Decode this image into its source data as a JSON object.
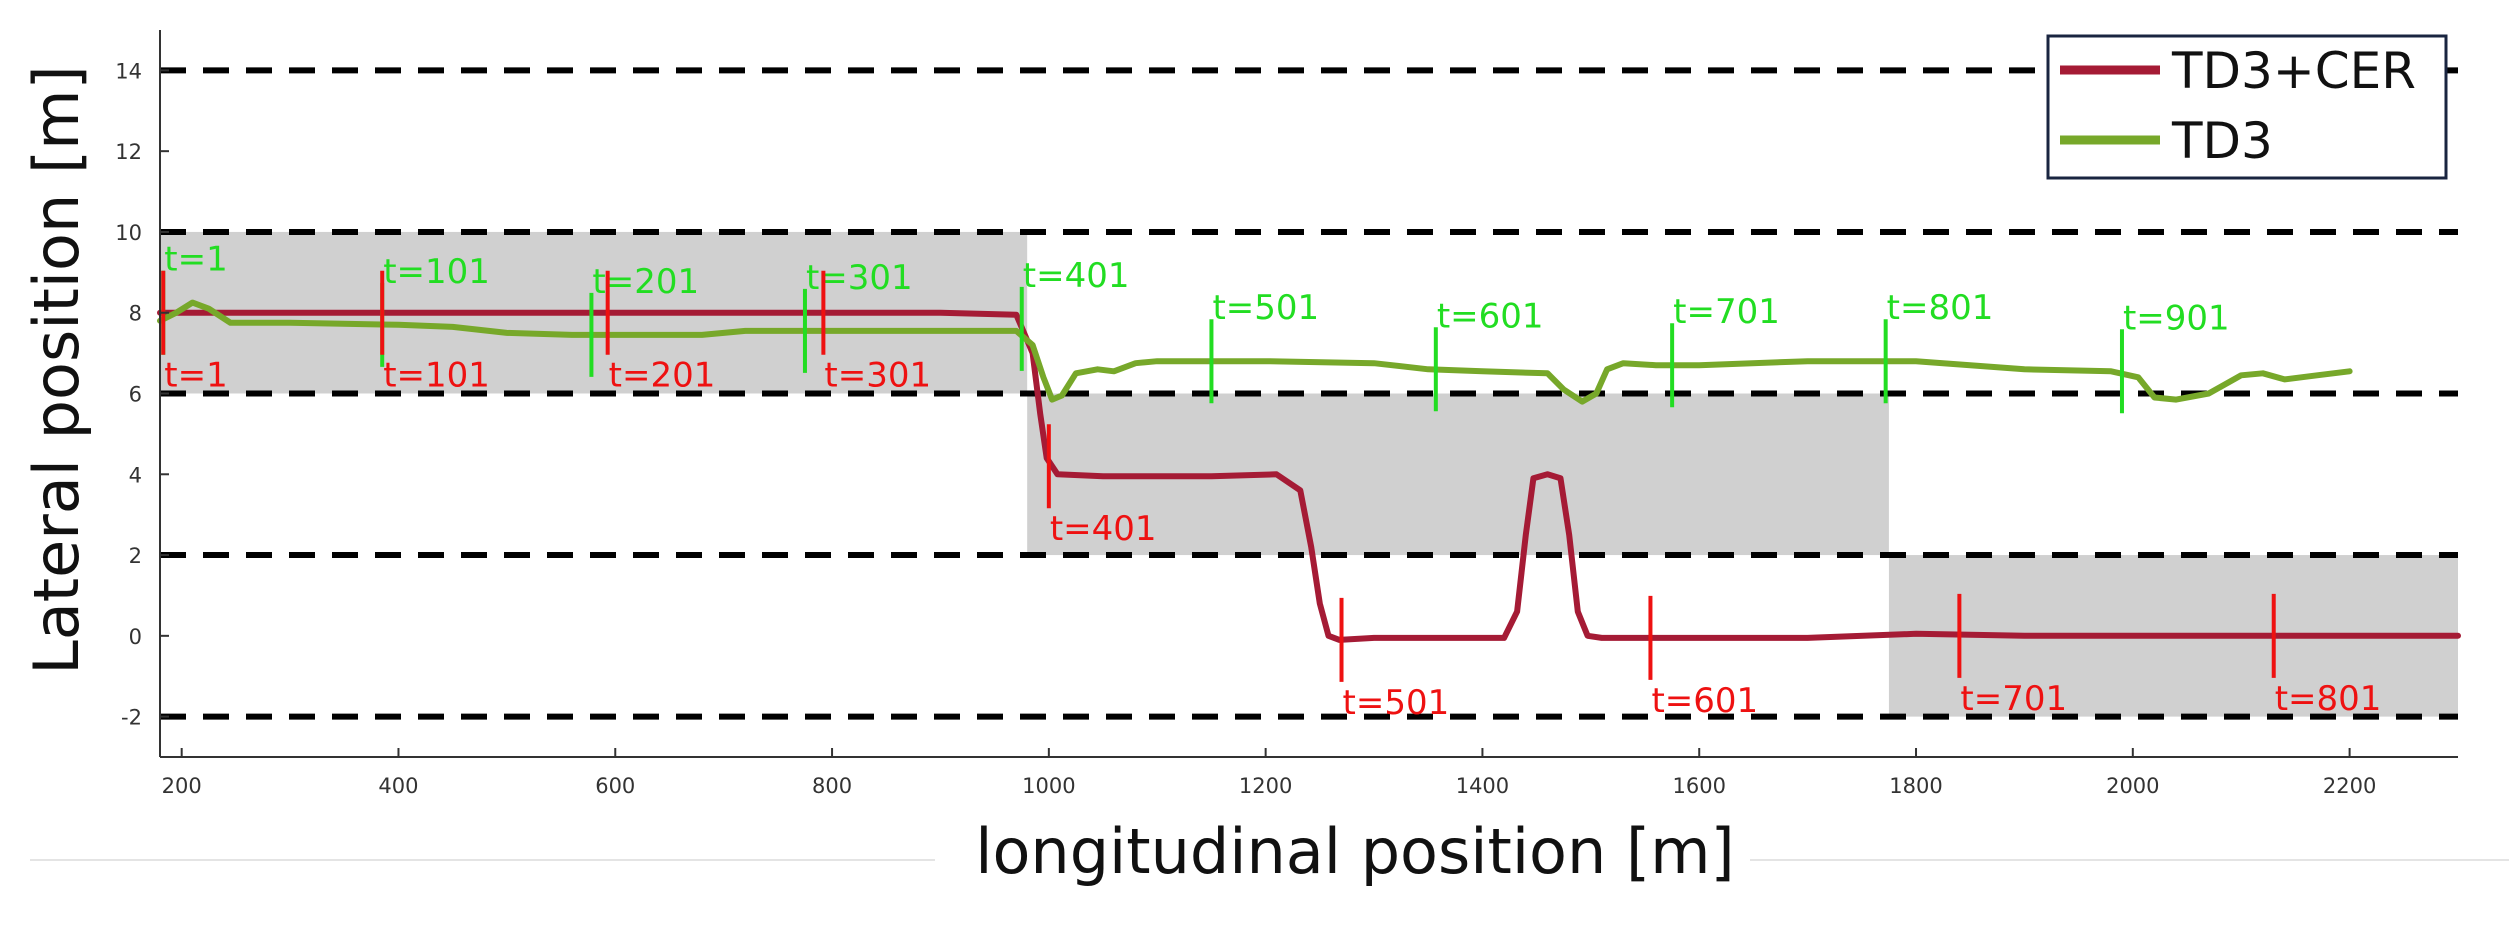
{
  "chart_data": {
    "type": "line",
    "title": "",
    "xlabel": "longitudinal position [m]",
    "ylabel": "Lateral position [m]",
    "xlim": [
      180,
      2300
    ],
    "ylim": [
      -3,
      15
    ],
    "x_ticks": [
      200,
      400,
      600,
      800,
      1000,
      1200,
      1400,
      1600,
      1800,
      2000,
      2200
    ],
    "y_ticks": [
      -2,
      0,
      2,
      4,
      6,
      8,
      10,
      12,
      14
    ],
    "grid": false,
    "legend_position": "top-right",
    "lane_lines_y": [
      -2,
      2,
      6,
      10,
      14
    ],
    "shaded_regions": [
      {
        "x": [
          180,
          980
        ],
        "y": [
          6,
          10
        ]
      },
      {
        "x": [
          980,
          1775
        ],
        "y": [
          2,
          6
        ]
      },
      {
        "x": [
          1775,
          2300
        ],
        "y": [
          -2,
          2
        ]
      }
    ],
    "series": [
      {
        "name": "TD3+CER",
        "color": "#a51b35",
        "points": [
          [
            180,
            8.0
          ],
          [
            300,
            8.0
          ],
          [
            500,
            8.0
          ],
          [
            700,
            8.0
          ],
          [
            900,
            8.0
          ],
          [
            970,
            7.95
          ],
          [
            985,
            7.0
          ],
          [
            992,
            5.5
          ],
          [
            998,
            4.4
          ],
          [
            1008,
            4.0
          ],
          [
            1050,
            3.95
          ],
          [
            1100,
            3.95
          ],
          [
            1150,
            3.95
          ],
          [
            1210,
            4.0
          ],
          [
            1232,
            3.6
          ],
          [
            1242,
            2.2
          ],
          [
            1250,
            0.8
          ],
          [
            1258,
            0.0
          ],
          [
            1268,
            -0.1
          ],
          [
            1300,
            -0.05
          ],
          [
            1350,
            -0.05
          ],
          [
            1420,
            -0.05
          ],
          [
            1432,
            0.6
          ],
          [
            1440,
            2.5
          ],
          [
            1447,
            3.9
          ],
          [
            1460,
            4.0
          ],
          [
            1472,
            3.9
          ],
          [
            1480,
            2.5
          ],
          [
            1488,
            0.6
          ],
          [
            1497,
            0.0
          ],
          [
            1510,
            -0.05
          ],
          [
            1600,
            -0.05
          ],
          [
            1700,
            -0.05
          ],
          [
            1800,
            0.05
          ],
          [
            1900,
            0.0
          ],
          [
            1960,
            0.0
          ],
          [
            2000,
            0.0
          ],
          [
            2100,
            0.0
          ],
          [
            2200,
            0.0
          ],
          [
            2300,
            0.0
          ]
        ]
      },
      {
        "name": "TD3",
        "color": "#77a82a",
        "points": [
          [
            180,
            7.8
          ],
          [
            195,
            8.0
          ],
          [
            210,
            8.25
          ],
          [
            225,
            8.1
          ],
          [
            245,
            7.75
          ],
          [
            300,
            7.75
          ],
          [
            400,
            7.7
          ],
          [
            450,
            7.65
          ],
          [
            500,
            7.5
          ],
          [
            560,
            7.45
          ],
          [
            600,
            7.45
          ],
          [
            680,
            7.45
          ],
          [
            720,
            7.55
          ],
          [
            800,
            7.55
          ],
          [
            900,
            7.55
          ],
          [
            970,
            7.55
          ],
          [
            985,
            7.2
          ],
          [
            995,
            6.4
          ],
          [
            1003,
            5.85
          ],
          [
            1012,
            5.95
          ],
          [
            1025,
            6.5
          ],
          [
            1045,
            6.6
          ],
          [
            1060,
            6.55
          ],
          [
            1080,
            6.75
          ],
          [
            1100,
            6.8
          ],
          [
            1200,
            6.8
          ],
          [
            1300,
            6.75
          ],
          [
            1350,
            6.6
          ],
          [
            1400,
            6.55
          ],
          [
            1460,
            6.5
          ],
          [
            1475,
            6.1
          ],
          [
            1492,
            5.8
          ],
          [
            1505,
            6.0
          ],
          [
            1515,
            6.6
          ],
          [
            1530,
            6.75
          ],
          [
            1560,
            6.7
          ],
          [
            1600,
            6.7
          ],
          [
            1700,
            6.8
          ],
          [
            1800,
            6.8
          ],
          [
            1900,
            6.6
          ],
          [
            1980,
            6.55
          ],
          [
            2005,
            6.4
          ],
          [
            2020,
            5.9
          ],
          [
            2040,
            5.85
          ],
          [
            2070,
            6.0
          ],
          [
            2100,
            6.45
          ],
          [
            2120,
            6.5
          ],
          [
            2140,
            6.35
          ],
          [
            2170,
            6.45
          ],
          [
            2200,
            6.55
          ]
        ]
      }
    ],
    "annotations": [
      {
        "label": "t=1",
        "x": 183,
        "y": 8.0,
        "series": "TD3",
        "color": "#22dd22",
        "pos": "above"
      },
      {
        "label": "t=1",
        "x": 183,
        "y": 8.0,
        "series": "TD3+CER",
        "color": "#ee1111",
        "pos": "below"
      },
      {
        "label": "t=101",
        "x": 385,
        "y": 7.7,
        "series": "TD3",
        "color": "#22dd22",
        "pos": "above"
      },
      {
        "label": "t=101",
        "x": 385,
        "y": 8.0,
        "series": "TD3+CER",
        "color": "#ee1111",
        "pos": "below"
      },
      {
        "label": "t=201",
        "x": 578,
        "y": 7.45,
        "series": "TD3",
        "color": "#22dd22",
        "pos": "above"
      },
      {
        "label": "t=201",
        "x": 593,
        "y": 8.0,
        "series": "TD3+CER",
        "color": "#ee1111",
        "pos": "below"
      },
      {
        "label": "t=301",
        "x": 775,
        "y": 7.55,
        "series": "TD3",
        "color": "#22dd22",
        "pos": "above"
      },
      {
        "label": "t=301",
        "x": 792,
        "y": 8.0,
        "series": "TD3+CER",
        "color": "#ee1111",
        "pos": "below"
      },
      {
        "label": "t=401",
        "x": 975,
        "y": 7.6,
        "series": "TD3",
        "color": "#22dd22",
        "pos": "above"
      },
      {
        "label": "t=401",
        "x": 1000,
        "y": 4.2,
        "series": "TD3+CER",
        "color": "#ee1111",
        "pos": "below"
      },
      {
        "label": "t=501",
        "x": 1150,
        "y": 6.8,
        "series": "TD3",
        "color": "#22dd22",
        "pos": "above"
      },
      {
        "label": "t=501",
        "x": 1270,
        "y": -0.1,
        "series": "TD3+CER",
        "color": "#ee1111",
        "pos": "below"
      },
      {
        "label": "t=601",
        "x": 1357,
        "y": 6.6,
        "series": "TD3",
        "color": "#22dd22",
        "pos": "above"
      },
      {
        "label": "t=601",
        "x": 1555,
        "y": -0.05,
        "series": "TD3+CER",
        "color": "#ee1111",
        "pos": "below"
      },
      {
        "label": "t=701",
        "x": 1575,
        "y": 6.7,
        "series": "TD3",
        "color": "#22dd22",
        "pos": "above"
      },
      {
        "label": "t=701",
        "x": 1840,
        "y": 0.0,
        "series": "TD3+CER",
        "color": "#ee1111",
        "pos": "below"
      },
      {
        "label": "t=801",
        "x": 1772,
        "y": 6.8,
        "series": "TD3",
        "color": "#22dd22",
        "pos": "above"
      },
      {
        "label": "t=801",
        "x": 2130,
        "y": 0.0,
        "series": "TD3+CER",
        "color": "#ee1111",
        "pos": "below"
      },
      {
        "label": "t=901",
        "x": 1990,
        "y": 6.55,
        "series": "TD3",
        "color": "#22dd22",
        "pos": "above"
      }
    ]
  }
}
